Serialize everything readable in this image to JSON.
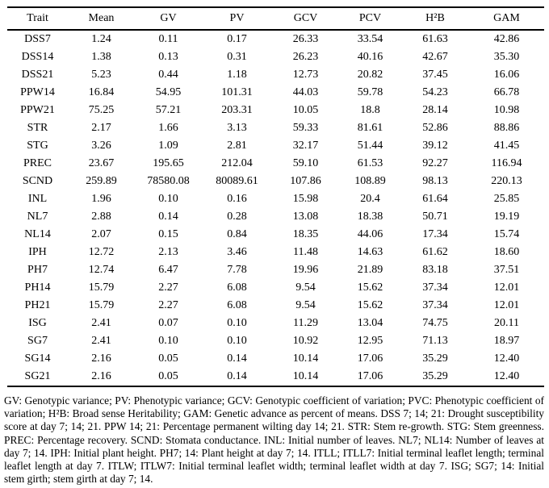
{
  "colors": {
    "background": "#ffffff",
    "text": "#000000",
    "rule": "#000000"
  },
  "table": {
    "headers": [
      "Trait",
      "Mean",
      "GV",
      "PV",
      "GCV",
      "PCV",
      "H²B",
      "GAM"
    ],
    "rows": [
      [
        "DSS7",
        "1.24",
        "0.11",
        "0.17",
        "26.33",
        "33.54",
        "61.63",
        "42.86"
      ],
      [
        "DSS14",
        "1.38",
        "0.13",
        "0.31",
        "26.23",
        "40.16",
        "42.67",
        "35.30"
      ],
      [
        "DSS21",
        "5.23",
        "0.44",
        "1.18",
        "12.73",
        "20.82",
        "37.45",
        "16.06"
      ],
      [
        "PPW14",
        "16.84",
        "54.95",
        "101.31",
        "44.03",
        "59.78",
        "54.23",
        "66.78"
      ],
      [
        "PPW21",
        "75.25",
        "57.21",
        "203.31",
        "10.05",
        "18.8",
        "28.14",
        "10.98"
      ],
      [
        "STR",
        "2.17",
        "1.66",
        "3.13",
        "59.33",
        "81.61",
        "52.86",
        "88.86"
      ],
      [
        "STG",
        "3.26",
        "1.09",
        "2.81",
        "32.17",
        "51.44",
        "39.12",
        "41.45"
      ],
      [
        "PREC",
        "23.67",
        "195.65",
        "212.04",
        "59.10",
        "61.53",
        "92.27",
        "116.94"
      ],
      [
        "SCND",
        "259.89",
        "78580.08",
        "80089.61",
        "107.86",
        "108.89",
        "98.13",
        "220.13"
      ],
      [
        "INL",
        "1.96",
        "0.10",
        "0.16",
        "15.98",
        "20.4",
        "61.64",
        "25.85"
      ],
      [
        "NL7",
        "2.88",
        "0.14",
        "0.28",
        "13.08",
        "18.38",
        "50.71",
        "19.19"
      ],
      [
        "NL14",
        "2.07",
        "0.15",
        "0.84",
        "18.35",
        "44.06",
        "17.34",
        "15.74"
      ],
      [
        "IPH",
        "12.72",
        "2.13",
        "3.46",
        "11.48",
        "14.63",
        "61.62",
        "18.60"
      ],
      [
        "PH7",
        "12.74",
        "6.47",
        "7.78",
        "19.96",
        "21.89",
        "83.18",
        "37.51"
      ],
      [
        "PH14",
        "15.79",
        "2.27",
        "6.08",
        "9.54",
        "15.62",
        "37.34",
        "12.01"
      ],
      [
        "PH21",
        "15.79",
        "2.27",
        "6.08",
        "9.54",
        "15.62",
        "37.34",
        "12.01"
      ],
      [
        "ISG",
        "2.41",
        "0.07",
        "0.10",
        "11.29",
        "13.04",
        "74.75",
        "20.11"
      ],
      [
        "SG7",
        "2.41",
        "0.10",
        "0.10",
        "10.92",
        "12.95",
        "71.13",
        "18.97"
      ],
      [
        "SG14",
        "2.16",
        "0.05",
        "0.14",
        "10.14",
        "17.06",
        "35.29",
        "12.40"
      ],
      [
        "SG21",
        "2.16",
        "0.05",
        "0.14",
        "10.14",
        "17.06",
        "35.29",
        "12.40"
      ]
    ]
  },
  "footnote": "GV: Genotypic variance; PV: Phenotypic variance; GCV: Genotypic coefficient of variation; PVC: Phenotypic coefficient of variation; H²B: Broad sense Heritability; GAM: Genetic advance as percent of means. DSS 7; 14; 21: Drought susceptibility score at day 7; 14; 21. PPW 14; 21: Percentage permanent wilting day 14; 21. STR: Stem re-growth. STG: Stem greenness. PREC: Percentage recovery. SCND: Stomata conductance. INL: Initial number of leaves. NL7; NL14: Number of leaves at day 7; 14. IPH: Initial plant height. PH7; 14: Plant height at day 7; 14. ITLL; ITLL7: Initial terminal leaflet length; terminal leaflet length at day 7. ITLW; ITLW7: Initial terminal leaflet width; terminal leaflet width at day 7. ISG; SG7; 14: Initial stem girth; stem girth at day 7; 14."
}
